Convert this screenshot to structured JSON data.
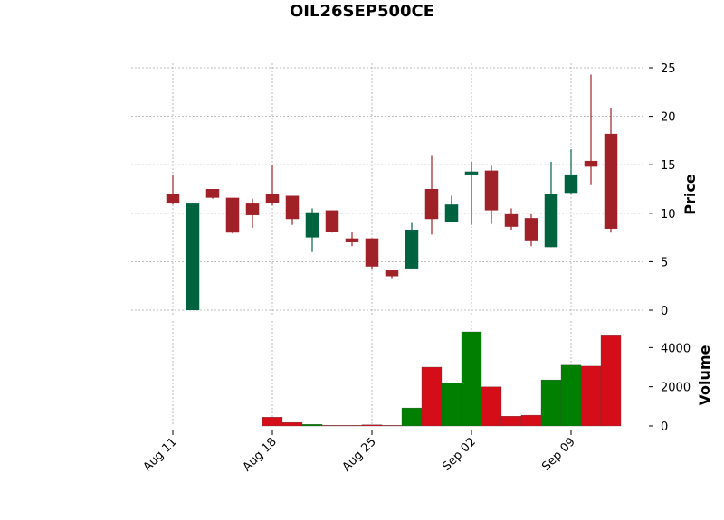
{
  "chart_data": {
    "type": "candlestick",
    "title": "OIL26SEP500CE",
    "ylabel_price": "Price",
    "ylabel_volume": "Volume",
    "price_ylim": [
      -0.5,
      25.5
    ],
    "price_ticks": [
      0,
      5,
      10,
      15,
      20,
      25
    ],
    "volume_ylim": [
      0,
      4800
    ],
    "volume_ticks": [
      0,
      2000,
      4000
    ],
    "x_ticks": [
      {
        "index": 0,
        "label": "Aug 11"
      },
      {
        "index": 5,
        "label": "Aug 18"
      },
      {
        "index": 10,
        "label": "Aug 25"
      },
      {
        "index": 15,
        "label": "Sep 02"
      },
      {
        "index": 20,
        "label": "Sep 09"
      }
    ],
    "up_color": "#006340",
    "down_color": "#a02128",
    "volume_up_color": "#007f00",
    "volume_down_color": "#d50d18",
    "candles": [
      {
        "open": 12.0,
        "high": 13.9,
        "low": 10.9,
        "close": 11.0,
        "volume": 0
      },
      {
        "open": 0.0,
        "high": 11.0,
        "low": 0.0,
        "close": 11.0,
        "volume": 0
      },
      {
        "open": 12.5,
        "high": 12.5,
        "low": 11.5,
        "close": 11.6,
        "volume": 0
      },
      {
        "open": 11.6,
        "high": 11.6,
        "low": 7.9,
        "close": 8.0,
        "volume": 0
      },
      {
        "open": 11.0,
        "high": 11.5,
        "low": 8.5,
        "close": 9.8,
        "volume": 0
      },
      {
        "open": 12.0,
        "high": 15.0,
        "low": 10.8,
        "close": 11.1,
        "volume": 450
      },
      {
        "open": 11.8,
        "high": 11.8,
        "low": 8.8,
        "close": 9.4,
        "volume": 180
      },
      {
        "open": 7.5,
        "high": 10.5,
        "low": 6.0,
        "close": 10.1,
        "volume": 80
      },
      {
        "open": 10.3,
        "high": 10.3,
        "low": 8.0,
        "close": 8.1,
        "volume": 30
      },
      {
        "open": 7.4,
        "high": 8.1,
        "low": 6.6,
        "close": 7.0,
        "volume": 30
      },
      {
        "open": 7.4,
        "high": 7.4,
        "low": 4.2,
        "close": 4.5,
        "volume": 60
      },
      {
        "open": 4.1,
        "high": 4.1,
        "low": 3.3,
        "close": 3.5,
        "volume": 30
      },
      {
        "open": 4.3,
        "high": 9.0,
        "low": 4.3,
        "close": 8.3,
        "volume": 920
      },
      {
        "open": 12.5,
        "high": 16.0,
        "low": 7.8,
        "close": 9.4,
        "volume": 3000
      },
      {
        "open": 9.1,
        "high": 11.8,
        "low": 9.1,
        "close": 10.9,
        "volume": 2200
      },
      {
        "open": 14.0,
        "high": 15.3,
        "low": 8.8,
        "close": 14.3,
        "volume": 4800
      },
      {
        "open": 14.4,
        "high": 14.9,
        "low": 8.9,
        "close": 10.3,
        "volume": 2000
      },
      {
        "open": 9.9,
        "high": 10.5,
        "low": 8.3,
        "close": 8.6,
        "volume": 500
      },
      {
        "open": 9.5,
        "high": 9.9,
        "low": 6.6,
        "close": 7.2,
        "volume": 550
      },
      {
        "open": 6.5,
        "high": 15.3,
        "low": 6.5,
        "close": 12.0,
        "volume": 2350
      },
      {
        "open": 12.1,
        "high": 16.6,
        "low": 12.0,
        "close": 14.0,
        "volume": 3100
      },
      {
        "open": 15.4,
        "high": 24.3,
        "low": 12.9,
        "close": 14.8,
        "volume": 3050
      },
      {
        "open": 18.2,
        "high": 20.9,
        "low": 8.0,
        "close": 8.4,
        "volume": 4650
      }
    ]
  }
}
